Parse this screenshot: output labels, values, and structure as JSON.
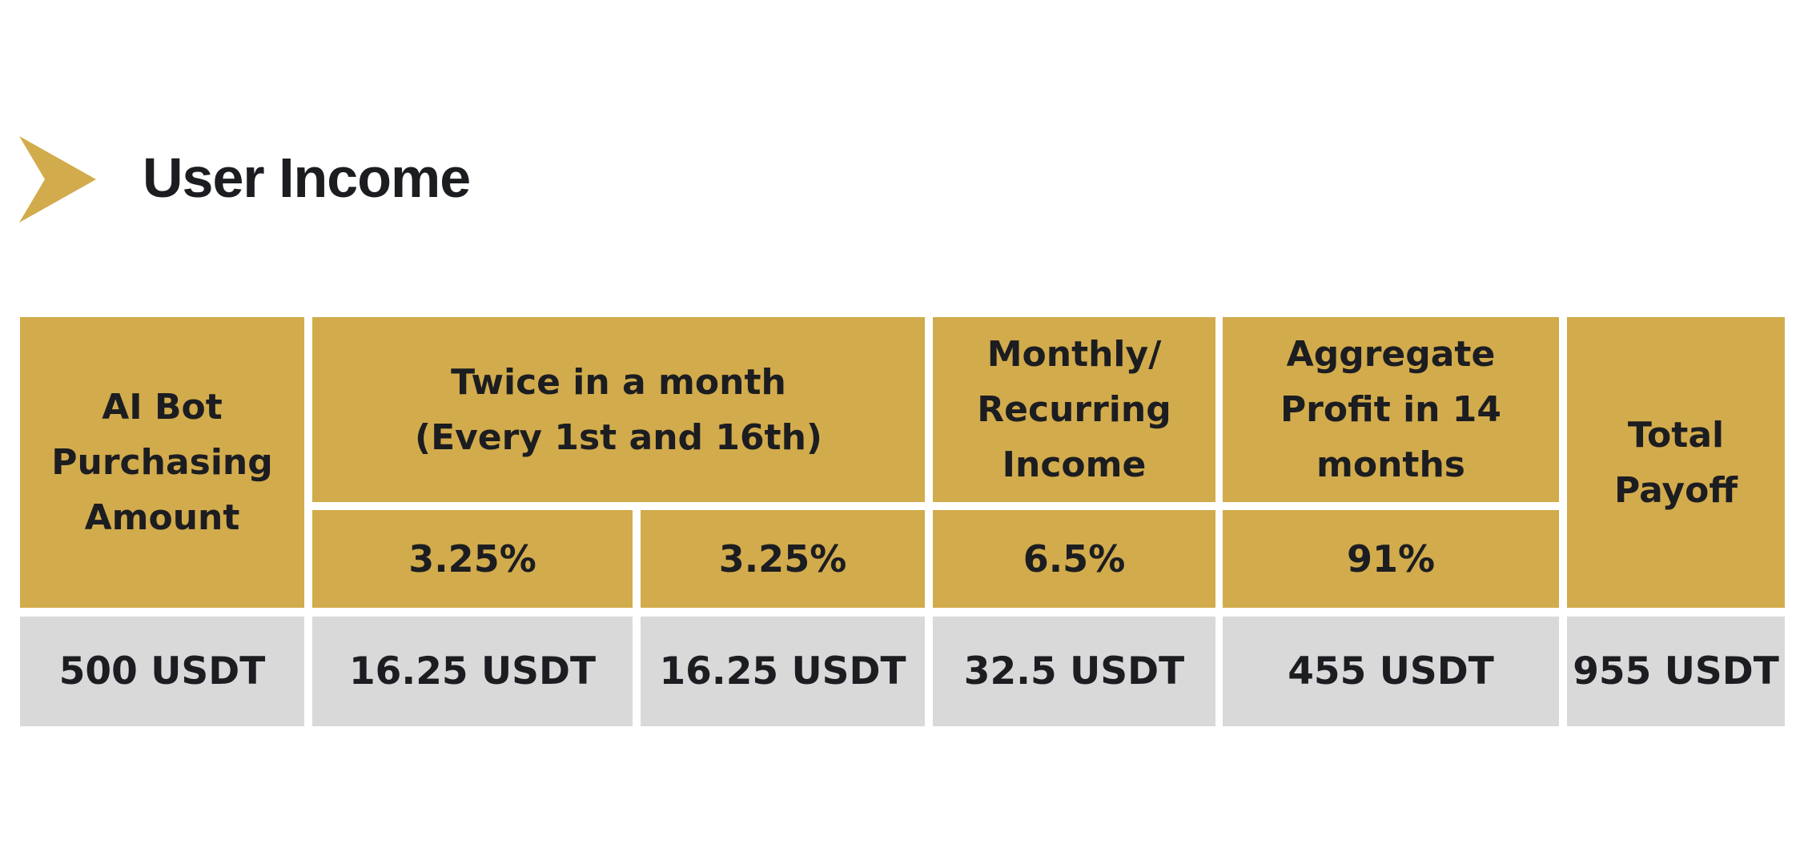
{
  "title": "User Income",
  "colors": {
    "accent": "#d2ab4c",
    "row": "#d9d9d9",
    "text": "#1c1d21"
  },
  "table": {
    "headers": {
      "purchase": "AI Bot\nPurchasing\nAmount",
      "twice": "Twice in a month\n(Every 1st and 16th)",
      "monthly": "Monthly/\nRecurring\nIncome",
      "aggregate": "Aggregate\nProfit in 14\nmonths",
      "total": "Total\nPayoff"
    },
    "rates": {
      "first": "3.25%",
      "second": "3.25%",
      "monthly": "6.5%",
      "aggregate": "91%"
    },
    "values": {
      "purchase": "500 USDT",
      "first": "16.25 USDT",
      "second": "16.25 USDT",
      "monthly": "32.5 USDT",
      "aggregate": "455 USDT",
      "total": "955 USDT"
    }
  }
}
